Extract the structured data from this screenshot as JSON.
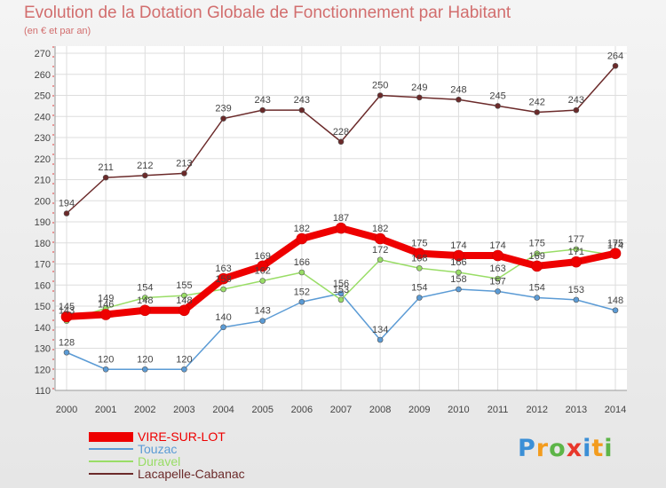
{
  "chart_data": {
    "type": "line",
    "title": "Evolution de la Dotation Globale de Fonctionnement par Habitant",
    "subtitle": "(en € et par an)",
    "x": [
      "2000",
      "2001",
      "2002",
      "2003",
      "2004",
      "2005",
      "2006",
      "2007",
      "2008",
      "2009",
      "2010",
      "2011",
      "2012",
      "2013",
      "2014"
    ],
    "ylim": [
      110,
      270
    ],
    "yticks": [
      110,
      120,
      130,
      140,
      150,
      160,
      170,
      180,
      190,
      200,
      210,
      220,
      230,
      240,
      250,
      260,
      270
    ],
    "grid": true,
    "legend_position": "bottom-left",
    "series": [
      {
        "name": "VIRE-SUR-LOT",
        "color": "#ee0000",
        "values": [
          145,
          146,
          148,
          148,
          163,
          169,
          182,
          187,
          182,
          175,
          174,
          174,
          169,
          171,
          175
        ]
      },
      {
        "name": "Touzac",
        "color": "#5b9bd5",
        "values": [
          128,
          120,
          120,
          120,
          140,
          143,
          152,
          156,
          134,
          154,
          158,
          157,
          154,
          153,
          148
        ]
      },
      {
        "name": "Duravel",
        "color": "#99dd66",
        "values": [
          143,
          149,
          154,
          155,
          158,
          162,
          166,
          153,
          172,
          168,
          166,
          163,
          175,
          177,
          174
        ]
      },
      {
        "name": "Lacapelle-Cabanac",
        "color": "#6b2a2a",
        "values": [
          194,
          211,
          212,
          213,
          239,
          243,
          243,
          228,
          250,
          249,
          248,
          245,
          242,
          243,
          264
        ]
      }
    ]
  },
  "logo": {
    "letters": [
      "P",
      "r",
      "o",
      "x",
      "i",
      "t",
      "i"
    ],
    "colors": [
      "#3b8fd6",
      "#f39c1e",
      "#5db548",
      "#e8372b",
      "#3b8fd6",
      "#f39c1e",
      "#5db548"
    ]
  }
}
